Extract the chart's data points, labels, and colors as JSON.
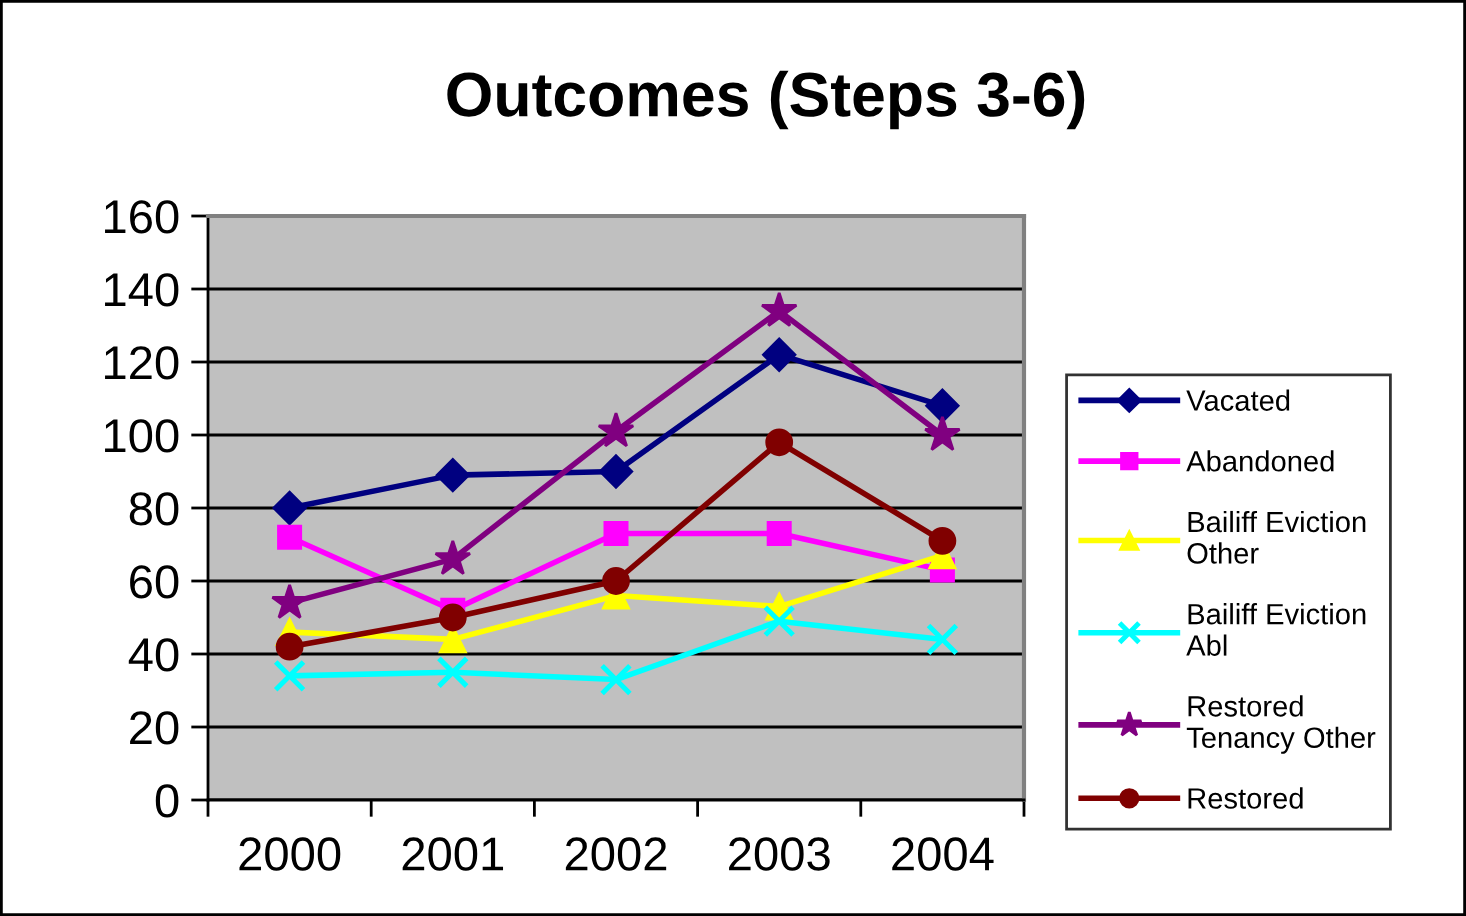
{
  "chart_data": {
    "type": "line",
    "title": "Outcomes (Steps 3-6)",
    "categories": [
      "2000",
      "2001",
      "2002",
      "2003",
      "2004"
    ],
    "series": [
      {
        "name": "Vacated",
        "color": "#000080",
        "marker": "diamond",
        "values": [
          80,
          89,
          90,
          122,
          108
        ]
      },
      {
        "name": "Abandoned",
        "color": "#ff00ff",
        "marker": "square",
        "values": [
          72,
          52,
          73,
          73,
          63
        ]
      },
      {
        "name": "Bailiff Eviction\nOther",
        "color": "#ffff00",
        "marker": "triangle",
        "values": [
          46,
          44,
          56,
          53,
          67
        ]
      },
      {
        "name": "Bailiff Eviction\nAbl",
        "color": "#00ffff",
        "marker": "cross",
        "values": [
          34,
          35,
          33,
          49,
          44
        ]
      },
      {
        "name": "Restored\nTenancy Other",
        "color": "#800080",
        "marker": "star",
        "values": [
          54,
          66,
          101,
          134,
          100
        ]
      },
      {
        "name": "Restored",
        "color": "#800000",
        "marker": "circle",
        "values": [
          42,
          50,
          60,
          98,
          71
        ]
      }
    ],
    "ylim": [
      0,
      160
    ],
    "yticks": [
      0,
      20,
      40,
      60,
      80,
      100,
      120,
      140,
      160
    ],
    "grid": "y",
    "legend": "right",
    "line_style": "solid"
  }
}
